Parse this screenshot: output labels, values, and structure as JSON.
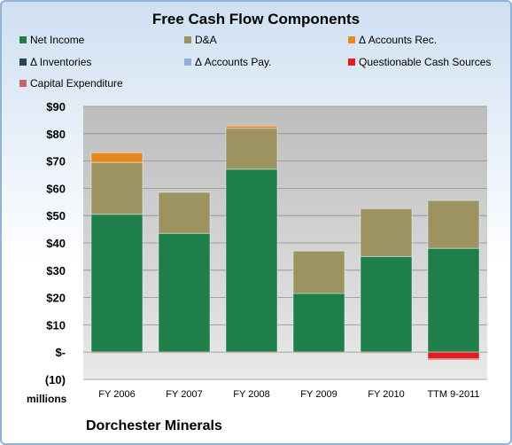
{
  "chart_data": {
    "type": "bar",
    "stacked": true,
    "title": "Free Cash Flow Components",
    "units_label": "millions",
    "company": "Dorchester Minerals",
    "categories": [
      "FY 2006",
      "FY 2007",
      "FY 2008",
      "FY 2009",
      "FY 2010",
      "TTM 9-2011"
    ],
    "ylim": [
      -10,
      90
    ],
    "y_ticks": [
      -10,
      0,
      10,
      20,
      30,
      40,
      50,
      60,
      70,
      80,
      90
    ],
    "y_tick_labels": [
      "(10)",
      "$-",
      "$10",
      "$20",
      "$30",
      "$40",
      "$50",
      "$60",
      "$70",
      "$80",
      "$90"
    ],
    "grid": true,
    "legend_position": "top",
    "series": [
      {
        "name": "Net Income",
        "color": "#1e7f4a",
        "values": [
          50.5,
          43.5,
          67.0,
          21.5,
          35.0,
          38.0
        ]
      },
      {
        "name": "D&A",
        "color": "#9c9360",
        "values": [
          19.0,
          15.0,
          15.0,
          15.5,
          17.5,
          17.5
        ]
      },
      {
        "name": "Δ Accounts Rec.",
        "color": "#e88820",
        "values": [
          3.5,
          0.0,
          0.8,
          0.0,
          0.0,
          0.0
        ]
      },
      {
        "name": "Δ Inventories",
        "color": "#27455f",
        "values": [
          0,
          0,
          0,
          0,
          0,
          0
        ]
      },
      {
        "name": "Δ Accounts Pay.",
        "color": "#8fb1d6",
        "values": [
          0,
          0,
          0,
          0,
          0,
          0
        ]
      },
      {
        "name": "Questionable Cash Sources",
        "color": "#e02020",
        "values": [
          0,
          0,
          0,
          0,
          0,
          -2.5
        ]
      },
      {
        "name": "Capital Expenditure",
        "color": "#c06a6a",
        "values": [
          -0.4,
          -0.3,
          -0.3,
          -0.3,
          -0.4,
          -0.4
        ]
      }
    ]
  }
}
